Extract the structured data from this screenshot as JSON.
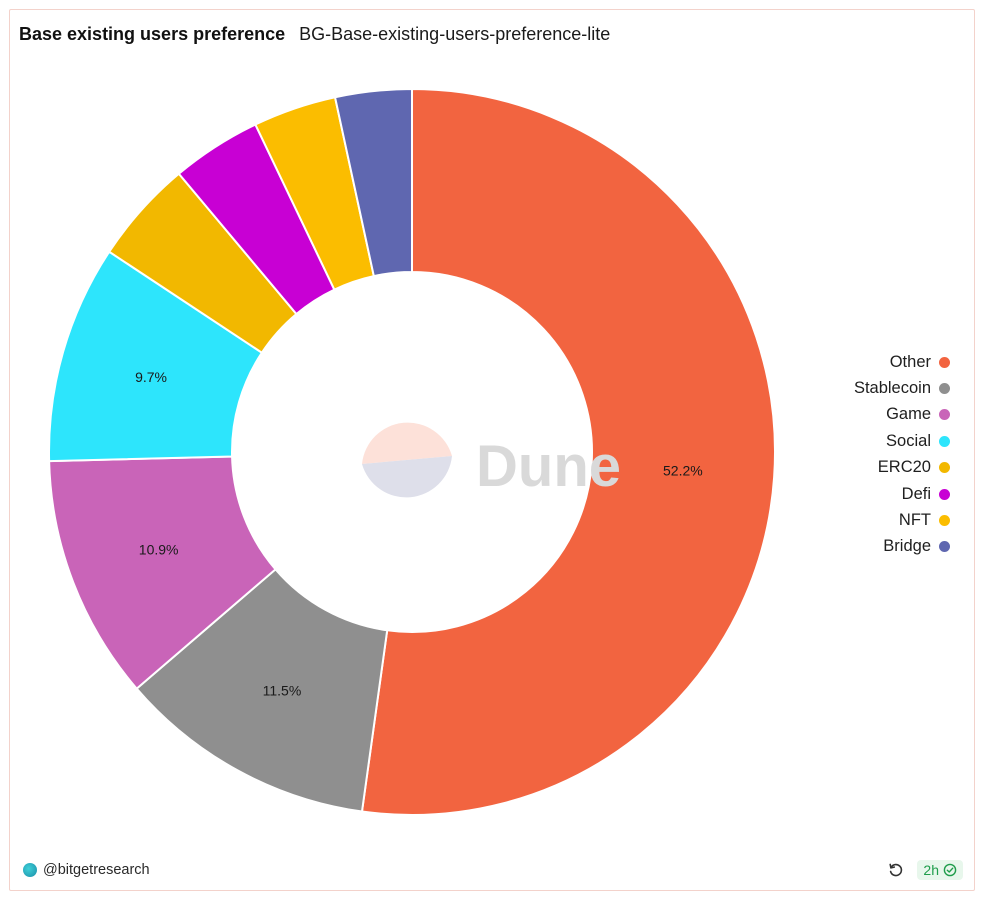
{
  "header": {
    "title": "Base existing users preference",
    "subtitle": "BG-Base-existing-users-preference-lite"
  },
  "watermark": {
    "text": "Dune"
  },
  "chart_data": {
    "type": "pie",
    "donut": true,
    "legend_position": "right",
    "labels": [
      "Other",
      "Stablecoin",
      "Game",
      "Social",
      "ERC20",
      "Defi",
      "NFT",
      "Bridge"
    ],
    "values": [
      52.2,
      11.5,
      10.9,
      9.7,
      4.6,
      4.0,
      3.7,
      3.4
    ],
    "data_labels": [
      "52.2%",
      "11.5%",
      "10.9%",
      "9.7%",
      "",
      "",
      "",
      ""
    ],
    "colors": [
      "#f26440",
      "#8f8f8f",
      "#c964b8",
      "#2de5fc",
      "#f2b800",
      "#c800d4",
      "#fbbd00",
      "#5f67b0"
    ]
  },
  "footer": {
    "author": "@bitgetresearch",
    "age": "2h"
  }
}
